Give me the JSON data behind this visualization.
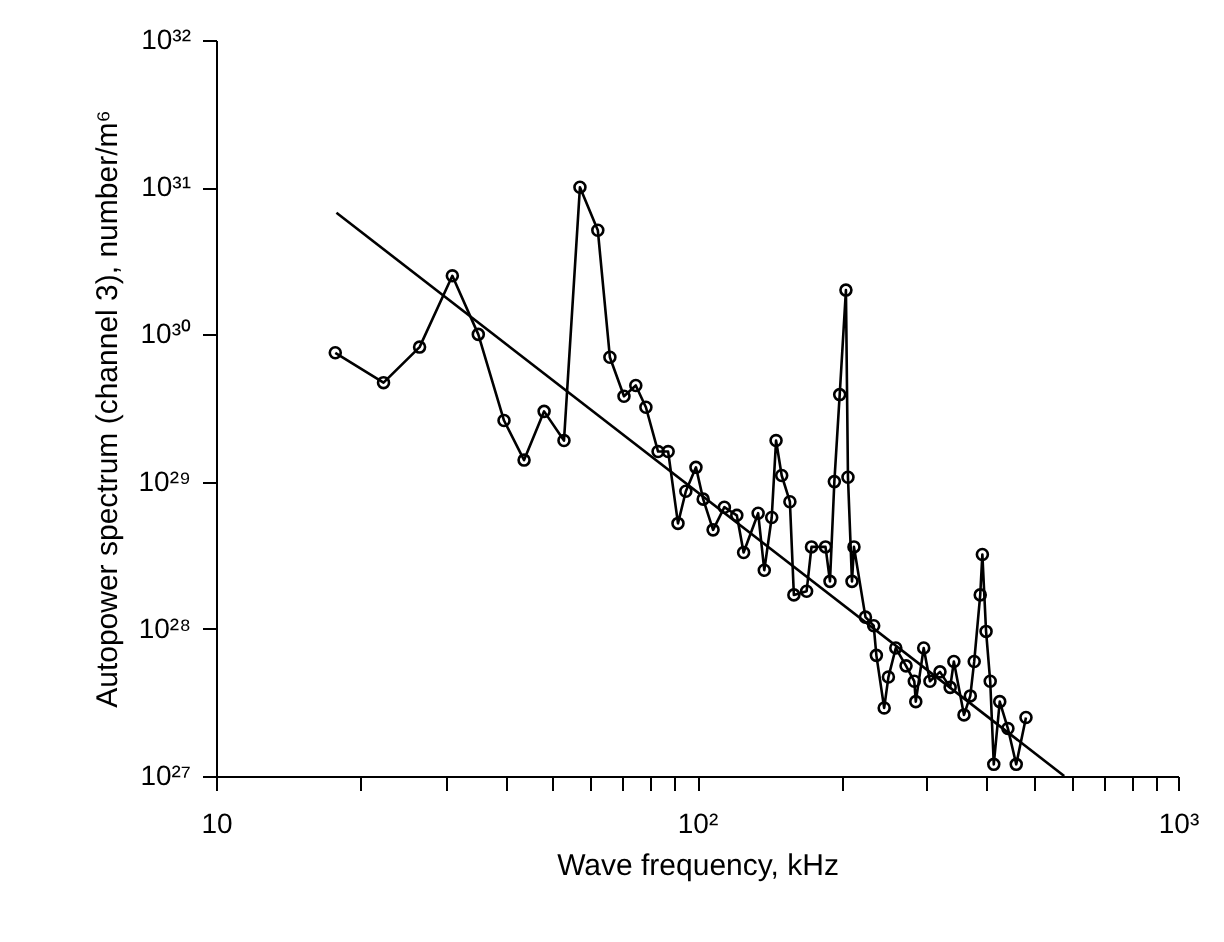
{
  "chart_data": {
    "type": "line",
    "xlabel": "Wave frequency, kHz",
    "ylabel": "Autopower spectrum (channel 3), number/m⁶",
    "log": "xy",
    "grid": false,
    "xlim": [
      10,
      1000
    ],
    "ylim": [
      1e+27,
      1e+32
    ],
    "xticks": [
      10,
      {
        "value": 20,
        "label": null
      },
      {
        "value": 30,
        "label": null
      },
      {
        "value": 40,
        "label": null
      },
      {
        "value": 50,
        "label": null
      },
      {
        "value": 60,
        "label": null
      },
      {
        "value": 70,
        "label": null
      },
      {
        "value": 80,
        "label": null
      },
      {
        "value": 90,
        "label": null
      },
      {
        "value": 100,
        "label": "10²"
      },
      {
        "value": 200,
        "label": null
      },
      {
        "value": 300,
        "label": null
      },
      {
        "value": 400,
        "label": null
      },
      {
        "value": 500,
        "label": null
      },
      {
        "value": 600,
        "label": null
      },
      {
        "value": 700,
        "label": null
      },
      {
        "value": 800,
        "label": null
      },
      {
        "value": 900,
        "label": null
      },
      {
        "value": 1000,
        "label": "10³"
      }
    ],
    "yticks": [
      {
        "value": 1e+27,
        "label": "10²⁷"
      },
      {
        "value": 1e+28,
        "label": "10²⁸"
      },
      {
        "value": 1e+29,
        "label": "10²⁹"
      },
      {
        "value": 1e+30,
        "label": "10³⁰"
      },
      {
        "value": 1e+31,
        "label": "10³¹"
      },
      {
        "value": 1e+32,
        "label": "10³²"
      }
    ],
    "series": [
      {
        "type": "line",
        "marker": "circle",
        "color": "#000000",
        "x": [
          17.7,
          22.3,
          26.5,
          31.0,
          35.1,
          39.7,
          43.7,
          48.1,
          52.9,
          57.1,
          62.2,
          65.9,
          70.5,
          74.6,
          78.3,
          83.0,
          87.1,
          91.3,
          94.8,
          99.5,
          103,
          108,
          114,
          121,
          125,
          134,
          138,
          143,
          146,
          150,
          156,
          159,
          169,
          173,
          185,
          189,
          193,
          198,
          204,
          206,
          210,
          212,
          224,
          233,
          236,
          245,
          250,
          259,
          272,
          283,
          285,
          296,
          305,
          320,
          336,
          342,
          359,
          370,
          377,
          388,
          392,
          399,
          407,
          414,
          426,
          443,
          461,
          483
        ],
        "values": [
          7.5e+29,
          4.7e+29,
          8.2e+29,
          2.5e+30,
          1e+30,
          2.6e+29,
          1.4e+29,
          3e+29,
          1.9e+29,
          1e+31,
          5.1e+30,
          7e+29,
          3.8e+29,
          4.5e+29,
          3.2e+29,
          1.6e+29,
          1.6e+29,
          5.2e+28,
          8.6e+28,
          1.25e+29,
          7.6e+28,
          4.7e+28,
          6.7e+28,
          5.9e+28,
          3.3e+28,
          6.1e+28,
          2.5e+28,
          5.7e+28,
          1.9e+29,
          1.1e+29,
          7.3e+28,
          1.7e+28,
          1.8e+28,
          3.6e+28,
          3.6e+28,
          2.1e+28,
          1e+29,
          3.9e+29,
          2e+30,
          1.07e+29,
          2.1e+28,
          3.6e+28,
          1.2e+28,
          1.05e+28,
          6.6e+27,
          2.9e+27,
          4.7e+27,
          7.4e+27,
          5.6e+27,
          4.4e+27,
          3.2e+27,
          7.4e+27,
          4.4e+27,
          5.1e+27,
          4e+27,
          6e+27,
          2.6e+27,
          3.5e+27,
          6e+27,
          1.7e+28,
          3.2e+28,
          9.6e+27,
          4.4e+27,
          1.2e+27,
          3.2e+27,
          2.1e+27,
          1.2e+27,
          2.5e+27
        ]
      },
      {
        "type": "line",
        "marker": "none",
        "color": "#000000",
        "x": [
          17.8,
          580
        ],
        "values": [
          6.7e+30,
          1e+27
        ]
      }
    ]
  }
}
